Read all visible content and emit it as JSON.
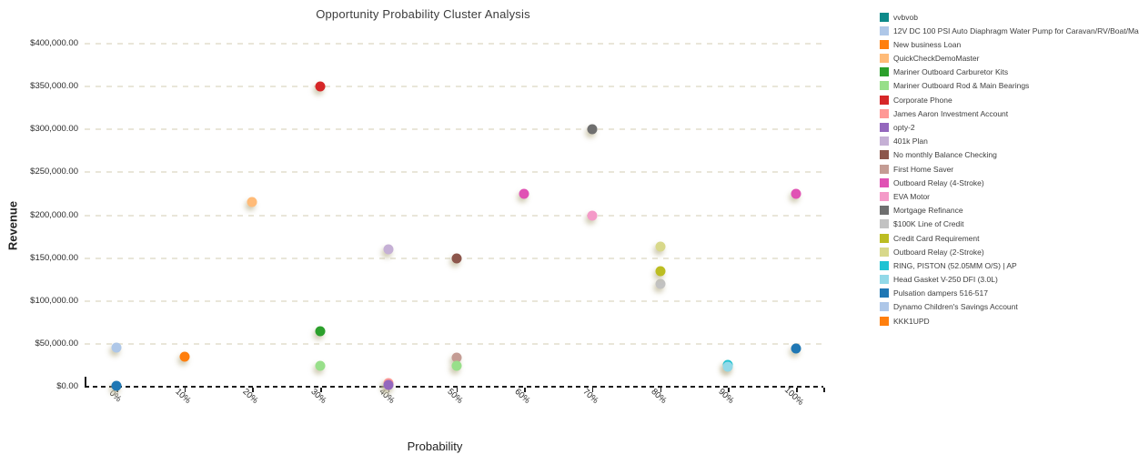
{
  "title": "Opportunity Probability Cluster Analysis",
  "chart_data": {
    "type": "scatter",
    "title": "Opportunity Probability Cluster Analysis",
    "xlabel": "Probability",
    "ylabel": "Revenue",
    "x_range_percent": [
      0,
      100
    ],
    "y_range_dollars": [
      0,
      400000
    ],
    "grid": "dashed horizontal gridlines, dashed x axis line",
    "legend_position": "right",
    "x_ticks": [
      "0%",
      "10%",
      "20%",
      "30%",
      "40%",
      "50%",
      "60%",
      "70%",
      "80%",
      "90%",
      "100%"
    ],
    "y_ticks": [
      "$0.00",
      "$50,000.00",
      "$100,000.00",
      "$150,000.00",
      "$200,000.00",
      "$250,000.00",
      "$300,000.00",
      "$350,000.00",
      "$400,000.00"
    ],
    "series": [
      {
        "name": "vvbvob",
        "color": "#0d8a8a"
      },
      {
        "name": "12V DC 100 PSI Auto Diaphragm Water Pump for Caravan/RV/Boat/Marine",
        "color": "#aec7e8"
      },
      {
        "name": "New business Loan",
        "color": "#ff7f0e"
      },
      {
        "name": "QuickCheckDemoMaster",
        "color": "#ffbb78"
      },
      {
        "name": "Mariner Outboard Carburetor Kits",
        "color": "#2ca02c"
      },
      {
        "name": "Mariner Outboard Rod & Main Bearings",
        "color": "#98df8a"
      },
      {
        "name": "Corporate Phone",
        "color": "#d62728"
      },
      {
        "name": "James Aaron Investment Account",
        "color": "#ff9896"
      },
      {
        "name": "opty-2",
        "color": "#9467bd"
      },
      {
        "name": "401k Plan",
        "color": "#c5b0d5"
      },
      {
        "name": "No monthly Balance Checking",
        "color": "#8c564b"
      },
      {
        "name": "First Home Saver",
        "color": "#c49c94"
      },
      {
        "name": "Outboard Relay (4-Stroke)",
        "color": "#e052b4"
      },
      {
        "name": "EVA Motor",
        "color": "#f49ac8"
      },
      {
        "name": "Mortgage Refinance",
        "color": "#6f6f6f"
      },
      {
        "name": "$100K Line of Credit",
        "color": "#c2c2c2"
      },
      {
        "name": "Credit Card Requirement",
        "color": "#bcbd22"
      },
      {
        "name": "Outboard Relay (2-Stroke)",
        "color": "#d8d88a"
      },
      {
        "name": "RING, PISTON (52.05MM O/S) | AP",
        "color": "#1fc3d3"
      },
      {
        "name": "Head Gasket V-250 DFI (3.0L)",
        "color": "#92d9e8"
      },
      {
        "name": "Pulsation dampers 516-517",
        "color": "#1f77b4"
      },
      {
        "name": "Dynamo Children's Savings Account",
        "color": "#aec7e8"
      },
      {
        "name": "KKK1UPD",
        "color": "#ff7f0e"
      }
    ],
    "points": [
      {
        "series": "12V DC 100 PSI Auto Diaphragm Water Pump for Caravan/RV/Boat/Marine",
        "probability_pct": 0,
        "revenue": 46000
      },
      {
        "series": "New business Loan",
        "probability_pct": 10,
        "revenue": 35000
      },
      {
        "series": "QuickCheckDemoMaster",
        "probability_pct": 20,
        "revenue": 215000
      },
      {
        "series": "Mariner Outboard Carburetor Kits",
        "probability_pct": 30,
        "revenue": 65000
      },
      {
        "series": "Mariner Outboard Rod & Main Bearings",
        "probability_pct": 30,
        "revenue": 24000
      },
      {
        "series": "Corporate Phone",
        "probability_pct": 30,
        "revenue": 350000
      },
      {
        "series": "James Aaron Investment Account",
        "probability_pct": 40,
        "revenue": 4000
      },
      {
        "series": "opty-2",
        "probability_pct": 40,
        "revenue": 2000
      },
      {
        "series": "401k Plan",
        "probability_pct": 40,
        "revenue": 160000
      },
      {
        "series": "No monthly Balance Checking",
        "probability_pct": 50,
        "revenue": 150000
      },
      {
        "series": "First Home Saver",
        "probability_pct": 50,
        "revenue": 34000
      },
      {
        "series": "Mariner Outboard Rod & Main Bearings",
        "probability_pct": 50,
        "revenue": 24000
      },
      {
        "series": "Outboard Relay (4-Stroke)",
        "probability_pct": 60,
        "revenue": 225000
      },
      {
        "series": "EVA Motor",
        "probability_pct": 70,
        "revenue": 200000
      },
      {
        "series": "Mortgage Refinance",
        "probability_pct": 70,
        "revenue": 300000
      },
      {
        "series": "$100K Line of Credit",
        "probability_pct": 80,
        "revenue": 120000
      },
      {
        "series": "Credit Card Requirement",
        "probability_pct": 80,
        "revenue": 135000
      },
      {
        "series": "Outboard Relay (2-Stroke)",
        "probability_pct": 80,
        "revenue": 163000
      },
      {
        "series": "RING, PISTON (52.05MM O/S) | AP",
        "probability_pct": 90,
        "revenue": 25000
      },
      {
        "series": "Head Gasket V-250 DFI (3.0L)",
        "probability_pct": 90,
        "revenue": 23000
      },
      {
        "series": "Pulsation dampers 516-517",
        "probability_pct": 0,
        "revenue": 1500
      },
      {
        "series": "Pulsation dampers 516-517",
        "probability_pct": 100,
        "revenue": 45000
      },
      {
        "series": "Outboard Relay (4-Stroke)",
        "probability_pct": 100,
        "revenue": 225000
      }
    ]
  }
}
